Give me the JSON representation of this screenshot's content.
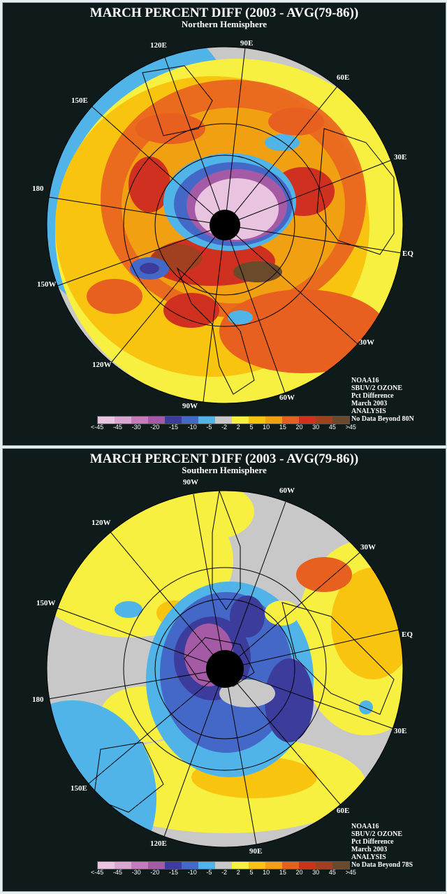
{
  "north": {
    "title": "MARCH PERCENT DIFF (2003 - AVG(79-86))",
    "subtitle": "Northern Hemisphere",
    "lon_labels": {
      "e90": "90E",
      "e60": "60E",
      "e30": "30E",
      "eq": "EQ",
      "w30": "30W",
      "w60": "60W",
      "w90": "90W",
      "w120": "120W",
      "w150": "150W",
      "l180": "180",
      "e150": "150E",
      "e120": "120E"
    },
    "info": [
      "NOAA16",
      "SBUV/2 OZONE",
      "Pct Difference",
      "March 2003",
      "ANALYSIS",
      "No Data Beyond 80N"
    ]
  },
  "south": {
    "title": "MARCH PERCENT DIFF (2003 - AVG(79-86))",
    "subtitle": "Southern Hemisphere",
    "lon_labels": {
      "w90": "90W",
      "w60": "60W",
      "w30": "30W",
      "eq": "EQ",
      "e30": "30E",
      "e60": "60E",
      "e90": "90E",
      "e120": "120E",
      "e150": "150E",
      "l180": "180",
      "w150": "150W",
      "w120": "120W"
    },
    "info": [
      "NOAA16",
      "SBUV/2 OZONE",
      "Pct Difference",
      "March 2003",
      "ANALYSIS",
      "No Data Beyond 78S"
    ]
  },
  "colorbar": {
    "ticks": [
      "<-45",
      "-45",
      "-30",
      "-20",
      "-15",
      "-10",
      "-5",
      "-2",
      "2",
      "5",
      "10",
      "15",
      "20",
      "30",
      "45",
      ">45"
    ],
    "colors": [
      "#e8c4e0",
      "#d8a6d0",
      "#c47cbc",
      "#a45aa4",
      "#3c3c9c",
      "#4468c8",
      "#50b4e8",
      "#c8c8c8",
      "#f8f040",
      "#f8c410",
      "#f0a010",
      "#e86020",
      "#d03020",
      "#a04020",
      "#6a4a2a"
    ]
  }
}
